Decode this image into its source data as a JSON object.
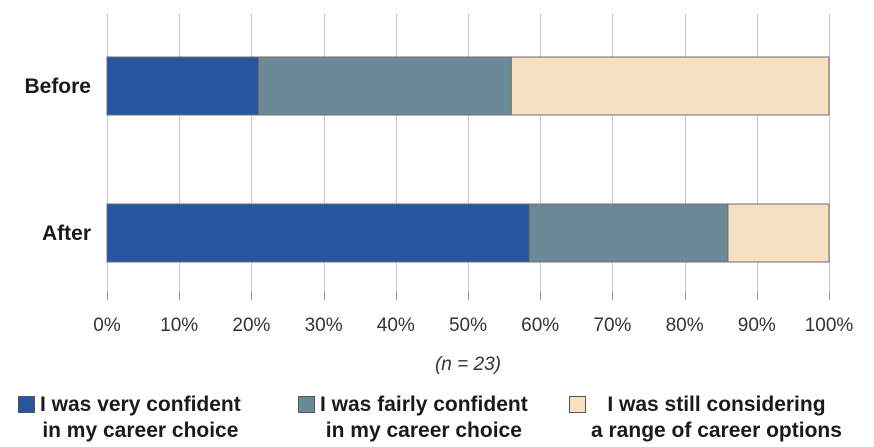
{
  "chart_data": {
    "type": "bar",
    "orientation": "horizontal",
    "stacked": true,
    "categories": [
      "Before",
      "After"
    ],
    "series": [
      {
        "name": "I was very confident in my career choice",
        "color": "#2755a0",
        "values": [
          21,
          58.5
        ]
      },
      {
        "name": "I was fairly confident in my career choice",
        "color": "#6b8a98",
        "values": [
          35,
          27.5
        ]
      },
      {
        "name": "I was still considering a range of career options",
        "color": "#f7dfc1",
        "values": [
          44,
          14
        ]
      }
    ],
    "x_ticks": [
      "0%",
      "10%",
      "20%",
      "30%",
      "40%",
      "50%",
      "60%",
      "70%",
      "80%",
      "90%",
      "100%"
    ],
    "xlim": [
      0,
      100
    ],
    "grid": "vertical",
    "legend_position": "bottom",
    "note": "(n = 23)"
  },
  "legend": [
    {
      "line1": "I was very confident",
      "line2": "in my career choice",
      "color": "#2755a0"
    },
    {
      "line1": "I was fairly confident",
      "line2": "in my career choice",
      "color": "#6b8a98"
    },
    {
      "line1": "I was still considering",
      "line2": "a range of career options",
      "color": "#f7dfc1"
    }
  ]
}
